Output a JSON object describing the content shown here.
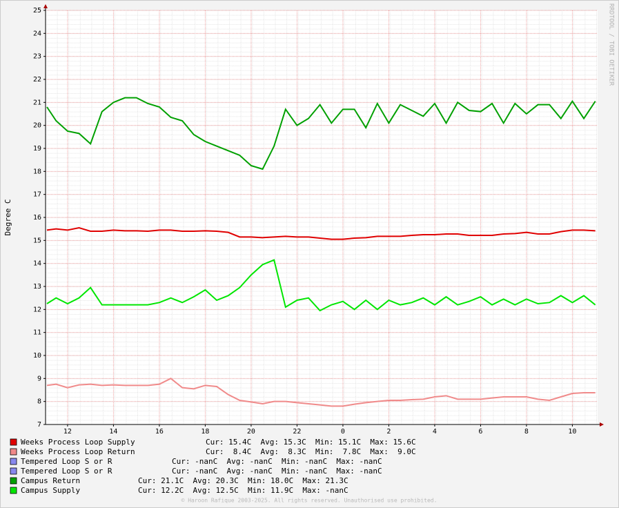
{
  "chart_data": {
    "type": "line",
    "ylabel": "Degree C",
    "watermark": "RRDTOOL / TOBI OETIKER",
    "footer": "© Haroon Rafique 2003-2025. All rights reserved. Unauthorised use prohibited.",
    "grid": true,
    "xlim": [
      11.04,
      35.1
    ],
    "ylim": [
      7,
      25
    ],
    "xticks": [
      12,
      14,
      16,
      18,
      20,
      22,
      {
        "value": 24,
        "label": "0"
      },
      {
        "value": 26,
        "label": "2"
      },
      {
        "value": 28,
        "label": "4"
      },
      {
        "value": 30,
        "label": "6"
      },
      {
        "value": 32,
        "label": "8"
      },
      {
        "value": 34,
        "label": "10"
      }
    ],
    "yticks": [
      7,
      8,
      9,
      10,
      11,
      12,
      13,
      14,
      15,
      16,
      17,
      18,
      19,
      20,
      21,
      22,
      23,
      24,
      25
    ],
    "x": [
      11.1,
      11.5,
      12,
      12.5,
      13,
      13.5,
      14,
      14.5,
      15,
      15.5,
      16,
      16.5,
      17,
      17.5,
      18,
      18.5,
      19,
      19.5,
      20,
      20.5,
      21,
      21.5,
      22,
      22.5,
      23,
      23.5,
      24,
      24.5,
      25,
      25.5,
      26,
      26.5,
      27,
      27.5,
      28,
      28.5,
      29,
      29.5,
      30,
      30.5,
      31,
      31.5,
      32,
      32.5,
      33,
      33.5,
      34,
      34.5,
      35
    ],
    "series": [
      {
        "name": "Weeks Process Loop Supply",
        "stats": "Cur: 15.4C  Avg: 15.3C  Min: 15.1C  Max: 15.6C",
        "color": "#e00000",
        "values": [
          15.45,
          15.5,
          15.45,
          15.55,
          15.4,
          15.4,
          15.45,
          15.42,
          15.42,
          15.4,
          15.45,
          15.45,
          15.4,
          15.4,
          15.42,
          15.4,
          15.35,
          15.15,
          15.15,
          15.12,
          15.15,
          15.18,
          15.15,
          15.15,
          15.1,
          15.05,
          15.05,
          15.1,
          15.12,
          15.18,
          15.18,
          15.18,
          15.22,
          15.25,
          15.25,
          15.28,
          15.28,
          15.22,
          15.22,
          15.22,
          15.28,
          15.3,
          15.35,
          15.28,
          15.28,
          15.38,
          15.45,
          15.45,
          15.42
        ]
      },
      {
        "name": "Weeks Process Loop Return",
        "stats": "Cur:  8.4C  Avg:  8.3C  Min:  7.8C  Max:  9.0C",
        "color": "#f08a8a",
        "values": [
          8.7,
          8.75,
          8.6,
          8.72,
          8.75,
          8.7,
          8.72,
          8.7,
          8.7,
          8.7,
          8.75,
          9.0,
          8.6,
          8.55,
          8.7,
          8.65,
          8.3,
          8.05,
          7.98,
          7.9,
          8.0,
          8.0,
          7.95,
          7.9,
          7.85,
          7.8,
          7.8,
          7.88,
          7.95,
          8.0,
          8.05,
          8.05,
          8.08,
          8.1,
          8.2,
          8.25,
          8.1,
          8.1,
          8.1,
          8.15,
          8.2,
          8.2,
          8.2,
          8.1,
          8.05,
          8.2,
          8.35,
          8.38,
          8.38
        ]
      },
      {
        "name": "Tempered Loop S or R",
        "stats": "Cur: -nanC  Avg: -nanC  Min: -nanC  Max: -nanC",
        "color": "#8888ee",
        "values": [
          null,
          null,
          null,
          null,
          null,
          null,
          null,
          null,
          null,
          null,
          null,
          null,
          null,
          null,
          null,
          null,
          null,
          null,
          null,
          null,
          null,
          null,
          null,
          null,
          null,
          null,
          null,
          null,
          null,
          null,
          null,
          null,
          null,
          null,
          null,
          null,
          null,
          null,
          null,
          null,
          null,
          null,
          null,
          null,
          null,
          null,
          null,
          null,
          null
        ]
      },
      {
        "name": "Tempered Loop S or R",
        "stats": "Cur: -nanC  Avg: -nanC  Min: -nanC  Max: -nanC",
        "color": "#8888ee",
        "values": [
          null,
          null,
          null,
          null,
          null,
          null,
          null,
          null,
          null,
          null,
          null,
          null,
          null,
          null,
          null,
          null,
          null,
          null,
          null,
          null,
          null,
          null,
          null,
          null,
          null,
          null,
          null,
          null,
          null,
          null,
          null,
          null,
          null,
          null,
          null,
          null,
          null,
          null,
          null,
          null,
          null,
          null,
          null,
          null,
          null,
          null,
          null,
          null,
          null
        ]
      },
      {
        "name": "Campus Return",
        "stats": "Cur: 21.1C  Avg: 20.3C  Min: 18.0C  Max: 21.3C",
        "color": "#00a000",
        "values": [
          20.8,
          20.2,
          19.75,
          19.65,
          19.2,
          20.6,
          21.0,
          21.2,
          21.2,
          20.95,
          20.8,
          20.35,
          20.2,
          19.6,
          19.3,
          19.1,
          18.9,
          18.7,
          18.25,
          18.1,
          19.1,
          20.7,
          20.0,
          20.3,
          20.9,
          20.1,
          20.7,
          20.7,
          19.9,
          20.95,
          20.1,
          20.9,
          20.65,
          20.4,
          20.95,
          20.1,
          21.0,
          20.65,
          20.6,
          20.95,
          20.1,
          20.95,
          20.5,
          20.9,
          20.9,
          20.3,
          21.05,
          20.3,
          21.05
        ]
      },
      {
        "name": "Campus Supply",
        "stats": "Cur: 12.2C  Avg: 12.5C  Min: 11.9C  Max: -nanC",
        "color": "#00e600",
        "values": [
          12.25,
          12.5,
          12.25,
          12.5,
          12.95,
          12.2,
          12.2,
          12.2,
          12.2,
          12.2,
          12.3,
          12.5,
          12.3,
          12.55,
          12.85,
          12.4,
          12.6,
          12.95,
          13.5,
          13.95,
          14.15,
          12.1,
          12.4,
          12.5,
          11.95,
          12.2,
          12.35,
          12.0,
          12.4,
          12.0,
          12.4,
          12.2,
          12.3,
          12.5,
          12.2,
          12.55,
          12.2,
          12.35,
          12.55,
          12.2,
          12.45,
          12.2,
          12.45,
          12.25,
          12.3,
          12.6,
          12.3,
          12.6,
          12.2
        ]
      }
    ]
  }
}
